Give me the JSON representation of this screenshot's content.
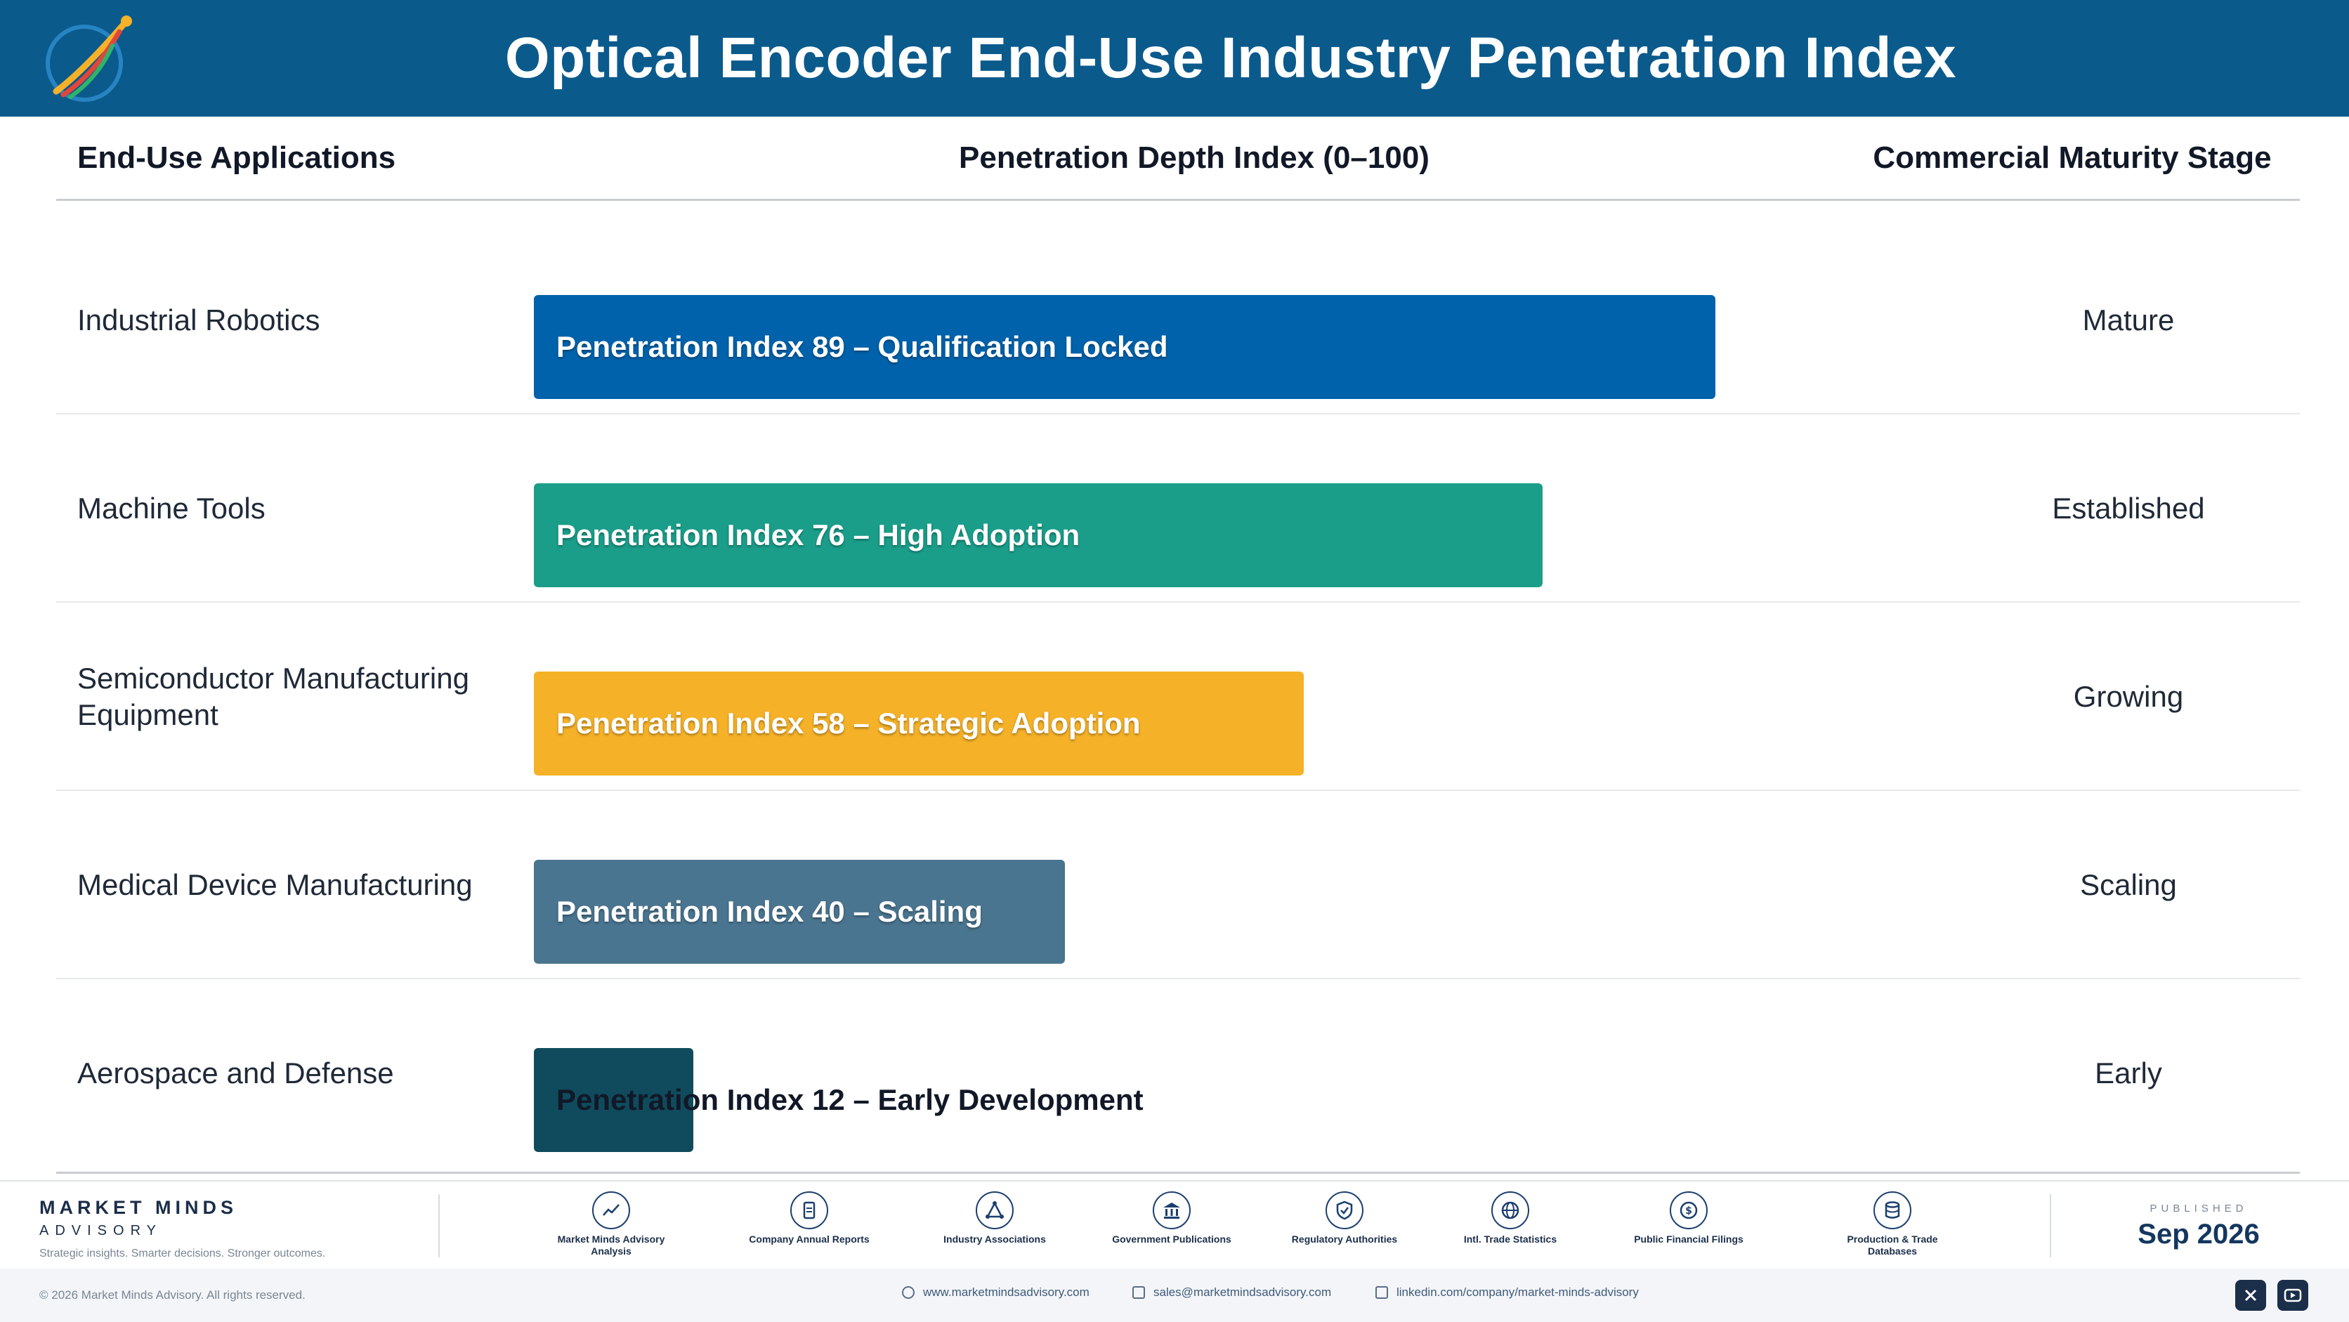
{
  "header": {
    "title": "Optical Encoder End-Use Industry Penetration Index",
    "logo_icon": "rocket-swoosh-logo-icon"
  },
  "columns": {
    "applications": "End-Use Applications",
    "index": "Penetration Depth Index (0–100)",
    "stage": "Commercial Maturity Stage"
  },
  "chart_data": {
    "type": "bar",
    "orientation": "horizontal",
    "categories": [
      "Industrial Robotics",
      "Machine Tools",
      "Semiconductor Manufacturing Equipment",
      "Medical Device Manufacturing",
      "Aerospace and Defense"
    ],
    "values": [
      89,
      76,
      58,
      40,
      12
    ],
    "xlim": [
      0,
      100
    ],
    "bar_labels": [
      "Penetration Index 89 – Qualification Locked",
      "Penetration Index 76 – High Adoption",
      "Penetration Index 58 – Strategic Adoption",
      "Penetration Index 40 – Scaling",
      "Penetration Index 12 – Early Development"
    ],
    "stages": [
      "Mature",
      "Established",
      "Growing",
      "Scaling",
      "Early"
    ],
    "colors": [
      "#0062ab",
      "#1a9e8a",
      "#f5b128",
      "#4a7590",
      "#0f4b5c"
    ],
    "grid": false
  },
  "footer": {
    "brand_name": "MARKET MINDS",
    "brand_sub": "ADVISORY",
    "brand_tag": "Strategic insights. Smarter decisions. Stronger outcomes.",
    "sources": [
      {
        "label": "Market Minds Advisory Analysis",
        "icon": "trend-line-icon"
      },
      {
        "label": "Company Annual Reports",
        "icon": "document-icon"
      },
      {
        "label": "Industry Associations",
        "icon": "network-icon"
      },
      {
        "label": "Government Publications",
        "icon": "government-building-icon"
      },
      {
        "label": "Regulatory Authorities",
        "icon": "shield-check-icon"
      },
      {
        "label": "Intl. Trade Statistics",
        "icon": "globe-icon"
      },
      {
        "label": "Public Financial Filings",
        "icon": "dollar-coin-icon"
      },
      {
        "label": "Production & Trade Databases",
        "icon": "database-icon"
      }
    ],
    "published_label": "PUBLISHED",
    "published_date": "Sep 2026",
    "copyright": "© 2026 Market Minds Advisory. All rights reserved.",
    "website": "www.marketmindsadvisory.com",
    "email": "sales@marketmindsadvisory.com",
    "linkedin": "linkedin.com/company/market-minds-advisory",
    "social": [
      "x-icon",
      "youtube-icon"
    ]
  }
}
